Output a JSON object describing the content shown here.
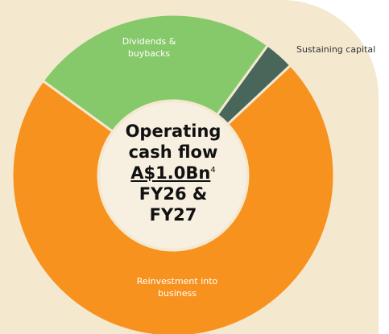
{
  "chart_data": {
    "type": "donut",
    "categories": [
      "Dividends & buybacks",
      "Sustaining capital",
      "Reinvestment into business"
    ],
    "values": [
      25,
      3,
      72
    ],
    "colors": [
      "#86c96a",
      "#48665a",
      "#f7921e"
    ],
    "center_text": {
      "line1": "Operating cash flow",
      "amount": "A$1.0Bn",
      "footnote": "4",
      "period": "FY26 & FY27"
    }
  }
}
